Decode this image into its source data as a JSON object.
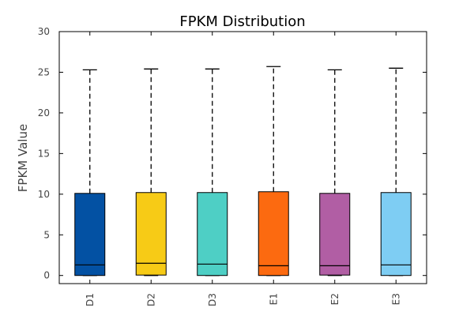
{
  "chart_data": {
    "type": "box",
    "title": "FPKM Distribution",
    "xlabel": "",
    "ylabel": "FPKM Value",
    "ylim": [
      -1,
      30
    ],
    "yticks": [
      0,
      5,
      10,
      15,
      20,
      25,
      30
    ],
    "categories": [
      "D1",
      "D2",
      "D3",
      "E1",
      "E2",
      "E3"
    ],
    "boxes": [
      {
        "name": "D1",
        "whisker_low": 0.0,
        "q1": 0.0,
        "median": 1.3,
        "q3": 10.1,
        "whisker_high": 25.3,
        "color": "#0351a3"
      },
      {
        "name": "D2",
        "whisker_low": 0.0,
        "q1": 0.05,
        "median": 1.5,
        "q3": 10.2,
        "whisker_high": 25.4,
        "color": "#f7cb16"
      },
      {
        "name": "D3",
        "whisker_low": 0.0,
        "q1": 0.0,
        "median": 1.4,
        "q3": 10.2,
        "whisker_high": 25.4,
        "color": "#4ecfc5"
      },
      {
        "name": "E1",
        "whisker_low": 0.0,
        "q1": 0.0,
        "median": 1.2,
        "q3": 10.3,
        "whisker_high": 25.7,
        "color": "#fc6a10"
      },
      {
        "name": "E2",
        "whisker_low": 0.0,
        "q1": 0.05,
        "median": 1.2,
        "q3": 10.1,
        "whisker_high": 25.3,
        "color": "#b15ea4"
      },
      {
        "name": "E3",
        "whisker_low": 0.0,
        "q1": 0.0,
        "median": 1.3,
        "q3": 10.2,
        "whisker_high": 25.5,
        "color": "#7ecdf3"
      }
    ],
    "grid": false,
    "legend": "none"
  }
}
